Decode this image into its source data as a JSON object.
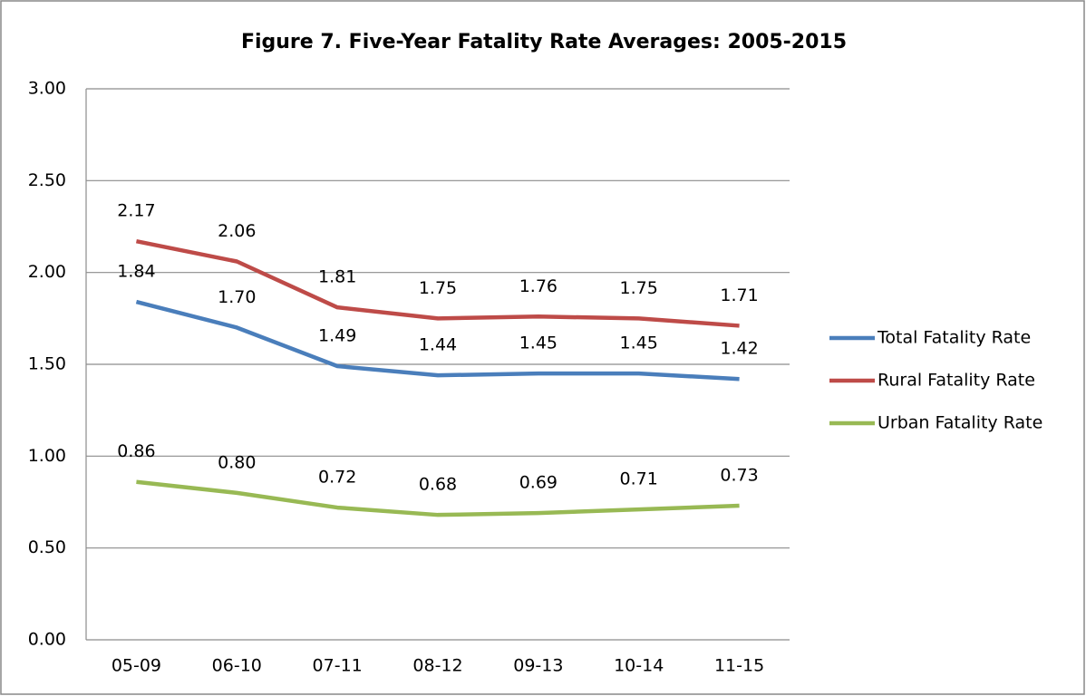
{
  "chart_data": {
    "type": "line",
    "title": "Figure 7. Five-Year Fatality Rate Averages: 2005-2015",
    "categories": [
      "05-09",
      "06-10",
      "07-11",
      "08-12",
      "09-13",
      "10-14",
      "11-15"
    ],
    "series": [
      {
        "name": "Total Fatality Rate",
        "color": "#4a7ebb",
        "values": [
          1.84,
          1.7,
          1.49,
          1.44,
          1.45,
          1.45,
          1.42
        ],
        "value_labels": [
          "1.84",
          "1.70",
          "1.49",
          "1.44",
          "1.45",
          "1.45",
          "1.42"
        ]
      },
      {
        "name": "Rural Fatality Rate",
        "color": "#be4b48",
        "values": [
          2.17,
          2.06,
          1.81,
          1.75,
          1.76,
          1.75,
          1.71
        ],
        "value_labels": [
          "2.17",
          "2.06",
          "1.81",
          "1.75",
          "1.76",
          "1.75",
          "1.71"
        ]
      },
      {
        "name": "Urban Fatality Rate",
        "color": "#98b954",
        "values": [
          0.86,
          0.8,
          0.72,
          0.68,
          0.69,
          0.71,
          0.73
        ],
        "value_labels": [
          "0.86",
          "0.80",
          "0.72",
          "0.68",
          "0.69",
          "0.71",
          "0.73"
        ]
      }
    ],
    "ylim": [
      0,
      3
    ],
    "yticks": [
      {
        "value": 0,
        "label": "0.00"
      },
      {
        "value": 0.5,
        "label": "0.50"
      },
      {
        "value": 1,
        "label": "1.00"
      },
      {
        "value": 1.5,
        "label": "1.50"
      },
      {
        "value": 2,
        "label": "2.00"
      },
      {
        "value": 2.5,
        "label": "2.50"
      },
      {
        "value": 3,
        "label": "3.00"
      }
    ],
    "grid": true,
    "legend": "right"
  }
}
